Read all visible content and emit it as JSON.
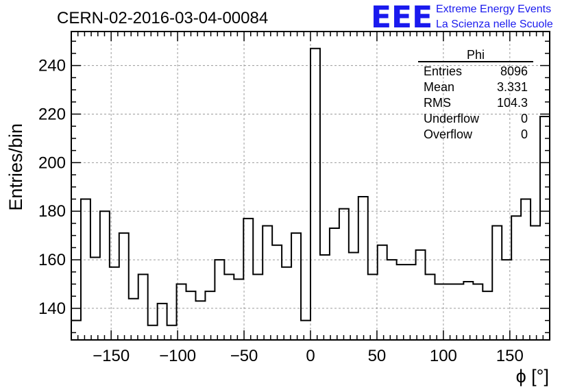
{
  "header": {
    "run_title": "CERN-02-2016-03-04-00084",
    "logo_letters": "EEE",
    "logo_line1": "Extreme Energy Events",
    "logo_line2": "La Scienza nelle Scuole"
  },
  "stats_box": {
    "title": "Phi",
    "rows": [
      {
        "label": "Entries",
        "value": "8096"
      },
      {
        "label": "Mean",
        "value": "3.331"
      },
      {
        "label": "RMS",
        "value": "104.3"
      },
      {
        "label": "Underflow",
        "value": "0"
      },
      {
        "label": "Overflow",
        "value": "0"
      }
    ]
  },
  "colors": {
    "logo": "#1a1aee",
    "axis": "#000000",
    "grid": "#9a9a9a",
    "histogram": "#000000"
  },
  "chart_data": {
    "type": "histogram",
    "title": "CERN-02-2016-03-04-00084",
    "xlabel": "ϕ [°]",
    "ylabel": "Entries/bin",
    "xlim": [
      -180,
      180
    ],
    "ylim": [
      127,
      254
    ],
    "x_ticks": [
      -150,
      -100,
      -50,
      0,
      50,
      100,
      150
    ],
    "x_tick_labels": [
      "−150",
      "−100",
      "−50",
      "0",
      "50",
      "100",
      "150"
    ],
    "y_ticks": [
      140,
      160,
      180,
      200,
      220,
      240
    ],
    "y_tick_labels": [
      "140",
      "160",
      "180",
      "200",
      "220",
      "240"
    ],
    "grid": true,
    "bin_width": 7.2,
    "bin_edges_start": -180,
    "values": [
      135,
      185,
      161,
      180,
      157,
      171,
      144,
      154,
      133,
      142,
      133,
      150,
      147,
      143,
      147,
      160,
      154,
      152,
      177,
      154,
      174,
      166,
      157,
      171,
      135,
      247,
      162,
      173,
      181,
      163,
      186,
      154,
      166,
      160,
      158,
      158,
      164,
      154,
      150,
      150,
      150,
      151,
      150,
      147,
      174,
      160,
      178,
      185,
      174,
      219
    ]
  }
}
